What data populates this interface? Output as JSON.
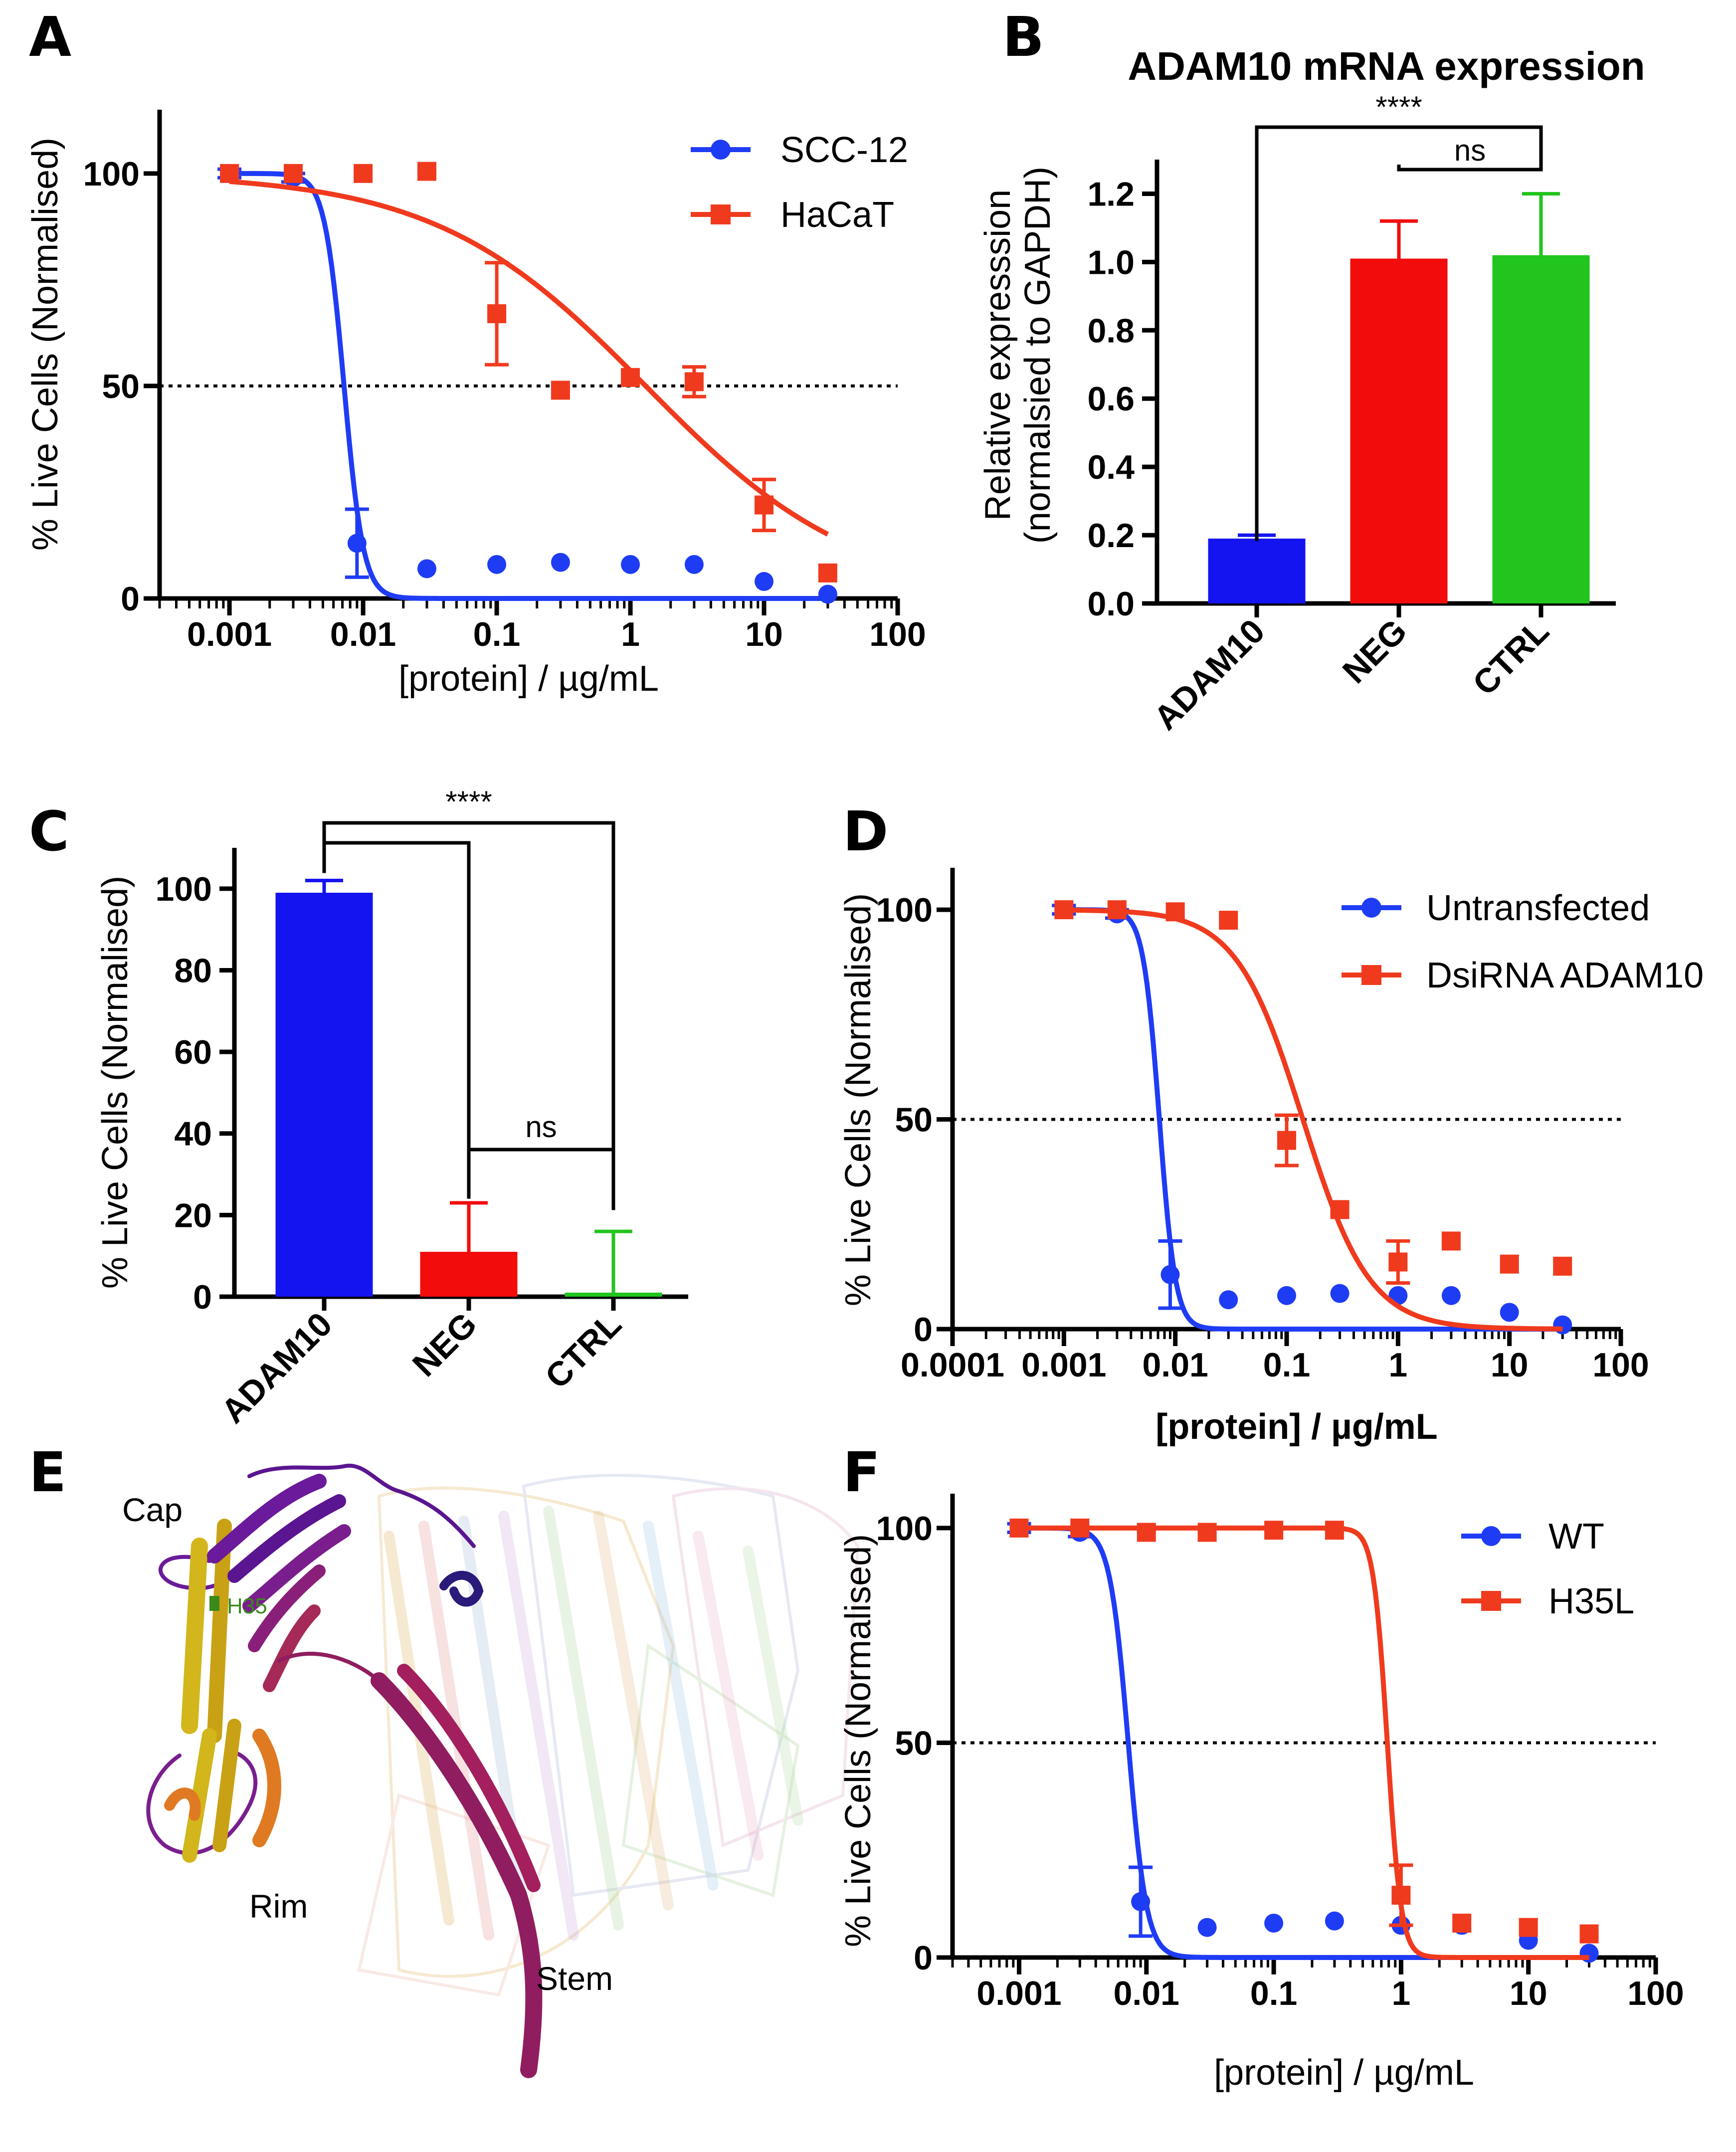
{
  "chart_data": [
    {
      "id": "A",
      "type": "scatter",
      "panel_label": "A",
      "title": "",
      "xlabel": "[protein] / µg/mL",
      "ylabel": "% Live Cells (Normalised)",
      "xscale": "log",
      "xlim": [
        0.0003,
        100
      ],
      "ylim": [
        0,
        115
      ],
      "xticks": [
        "0.001",
        "0.01",
        "0.1",
        "1",
        "10",
        "100"
      ],
      "yticks": [
        "0",
        "50",
        "100"
      ],
      "reference_line_y": 50,
      "legend_position": "top-right",
      "series": [
        {
          "name": "SCC-12",
          "color": "#1f3cf5",
          "marker": "circle",
          "x": [
            0.001,
            0.003,
            0.009,
            0.03,
            0.1,
            0.3,
            1,
            3,
            10,
            30
          ],
          "y": [
            100,
            99,
            13,
            7,
            8,
            8.5,
            8,
            8,
            4,
            1
          ],
          "err": [
            1,
            1,
            8,
            0,
            0,
            0,
            0,
            0,
            0,
            0
          ],
          "fit": {
            "top": 100,
            "bottom": 0,
            "ic50": 0.0072,
            "hill": 6
          }
        },
        {
          "name": "HaCaT",
          "color": "#f03a1e",
          "marker": "square",
          "x": [
            0.001,
            0.003,
            0.01,
            0.03,
            0.1,
            0.3,
            1,
            3,
            10,
            30
          ],
          "y": [
            100,
            100,
            100,
            100.5,
            67,
            49,
            52,
            51,
            22,
            6
          ],
          "err": [
            0,
            0,
            0,
            0,
            12,
            0,
            0,
            3.5,
            6,
            0
          ],
          "fit": {
            "top": 100,
            "bottom": 0,
            "ic50": 1.3,
            "hill": 0.55
          }
        }
      ]
    },
    {
      "id": "B",
      "type": "bar",
      "panel_label": "B",
      "title": "ADAM10 mRNA expression",
      "xlabel": "",
      "ylabel": "Relative expresssion (normalsied to GAPDH)",
      "ylabel_line1": "Relative expresssion",
      "ylabel_line2": "(normalsied to GAPDH)",
      "ylim": [
        0,
        1.3
      ],
      "yticks": [
        "0.0",
        "0.2",
        "0.4",
        "0.6",
        "0.8",
        "1.0",
        "1.2"
      ],
      "categories": [
        "ADAM10",
        "NEG",
        "CTRL"
      ],
      "values": [
        0.19,
        1.01,
        1.02
      ],
      "errors": [
        0.01,
        0.11,
        0.18
      ],
      "colors": [
        "#1414f0",
        "#f20c0c",
        "#22c41e"
      ],
      "significance": [
        {
          "from": "ADAM10",
          "to": "CTRL",
          "label": "****"
        },
        {
          "from": "NEG",
          "to": "CTRL",
          "label": "ns"
        }
      ]
    },
    {
      "id": "C",
      "type": "bar",
      "panel_label": "C",
      "title": "",
      "xlabel": "",
      "ylabel": "% Live Cells (Normalised)",
      "ylim": [
        0,
        110
      ],
      "yticks": [
        "0",
        "20",
        "40",
        "60",
        "80",
        "100"
      ],
      "categories": [
        "ADAM10",
        "NEG",
        "CTRL"
      ],
      "values": [
        99,
        11,
        1
      ],
      "errors": [
        3,
        12,
        15
      ],
      "colors": [
        "#1414f0",
        "#f20c0c",
        "#22c41e"
      ],
      "significance": [
        {
          "from": "ADAM10",
          "to": "CTRL",
          "label": "****"
        },
        {
          "from": "NEG",
          "to": "CTRL",
          "label": "ns"
        }
      ]
    },
    {
      "id": "D",
      "type": "scatter",
      "panel_label": "D",
      "title": "",
      "xlabel": "[protein] / µg/mL",
      "ylabel": "% Live Cells (Normalised)",
      "xscale": "log",
      "xlim": [
        0.0001,
        100
      ],
      "ylim": [
        0,
        110
      ],
      "xticks": [
        "0.0001",
        "0.001",
        "0.01",
        "0.1",
        "1",
        "10",
        "100"
      ],
      "yticks": [
        "0",
        "50",
        "100"
      ],
      "reference_line_y": 50,
      "legend_position": "top-right",
      "series": [
        {
          "name": "Untransfected",
          "color": "#1f3cf5",
          "marker": "circle",
          "x": [
            0.001,
            0.003,
            0.009,
            0.03,
            0.1,
            0.3,
            1,
            3,
            10,
            30
          ],
          "y": [
            100,
            99,
            13,
            7,
            8,
            8.5,
            8,
            8,
            4,
            1
          ],
          "err": [
            1,
            1,
            8,
            0,
            0,
            0,
            0,
            0,
            0,
            0
          ],
          "fit": {
            "top": 100,
            "bottom": 0,
            "ic50": 0.0072,
            "hill": 6
          }
        },
        {
          "name": "DsiRNA ADAM10",
          "color": "#f03a1e",
          "marker": "square",
          "x": [
            0.001,
            0.003,
            0.01,
            0.03,
            0.1,
            0.3,
            1,
            3,
            10,
            30
          ],
          "y": [
            100,
            100,
            99.5,
            97.5,
            45,
            28.5,
            16,
            21,
            15.5,
            15
          ],
          "err": [
            0,
            0,
            0,
            0,
            6,
            0,
            5,
            0,
            0,
            0
          ],
          "fit": {
            "top": 100,
            "bottom": 0,
            "ic50": 0.14,
            "hill": 1.45
          }
        }
      ]
    },
    {
      "id": "F",
      "type": "scatter",
      "panel_label": "F",
      "title": "",
      "xlabel": "[protein] / µg/mL",
      "ylabel": "% Live Cells (Normalised)",
      "xscale": "log",
      "xlim": [
        0.0003,
        100
      ],
      "ylim": [
        0,
        108
      ],
      "xticks": [
        "0.001",
        "0.01",
        "0.1",
        "1",
        "10",
        "100"
      ],
      "yticks": [
        "0",
        "50",
        "100"
      ],
      "reference_line_y": 50,
      "legend_position": "top-right",
      "series": [
        {
          "name": "WT",
          "color": "#1f3cf5",
          "marker": "circle",
          "x": [
            0.001,
            0.003,
            0.009,
            0.03,
            0.1,
            0.3,
            1,
            3,
            10,
            30
          ],
          "y": [
            100,
            99,
            13,
            7,
            8,
            8.5,
            7.5,
            7.5,
            4,
            1
          ],
          "err": [
            1,
            1,
            8,
            0,
            0,
            0,
            0,
            0,
            0,
            0
          ],
          "fit": {
            "top": 100,
            "bottom": 0,
            "ic50": 0.0072,
            "hill": 6
          }
        },
        {
          "name": "H35L",
          "color": "#f03a1e",
          "marker": "square",
          "x": [
            0.001,
            0.003,
            0.01,
            0.03,
            0.1,
            0.3,
            1,
            3,
            10,
            30
          ],
          "y": [
            100,
            100,
            99,
            99,
            99.5,
            99.5,
            14.5,
            8,
            7,
            5.5
          ],
          "err": [
            0,
            0,
            0,
            0,
            0,
            0,
            7,
            0,
            0,
            0
          ],
          "fit": {
            "top": 100,
            "bottom": 0,
            "ic50": 0.78,
            "hill": 8
          }
        }
      ]
    }
  ],
  "panel_e": {
    "panel_label": "E",
    "labels": {
      "cap": "Cap",
      "residue": "H35",
      "rim": "Rim",
      "stem": "Stem"
    }
  }
}
